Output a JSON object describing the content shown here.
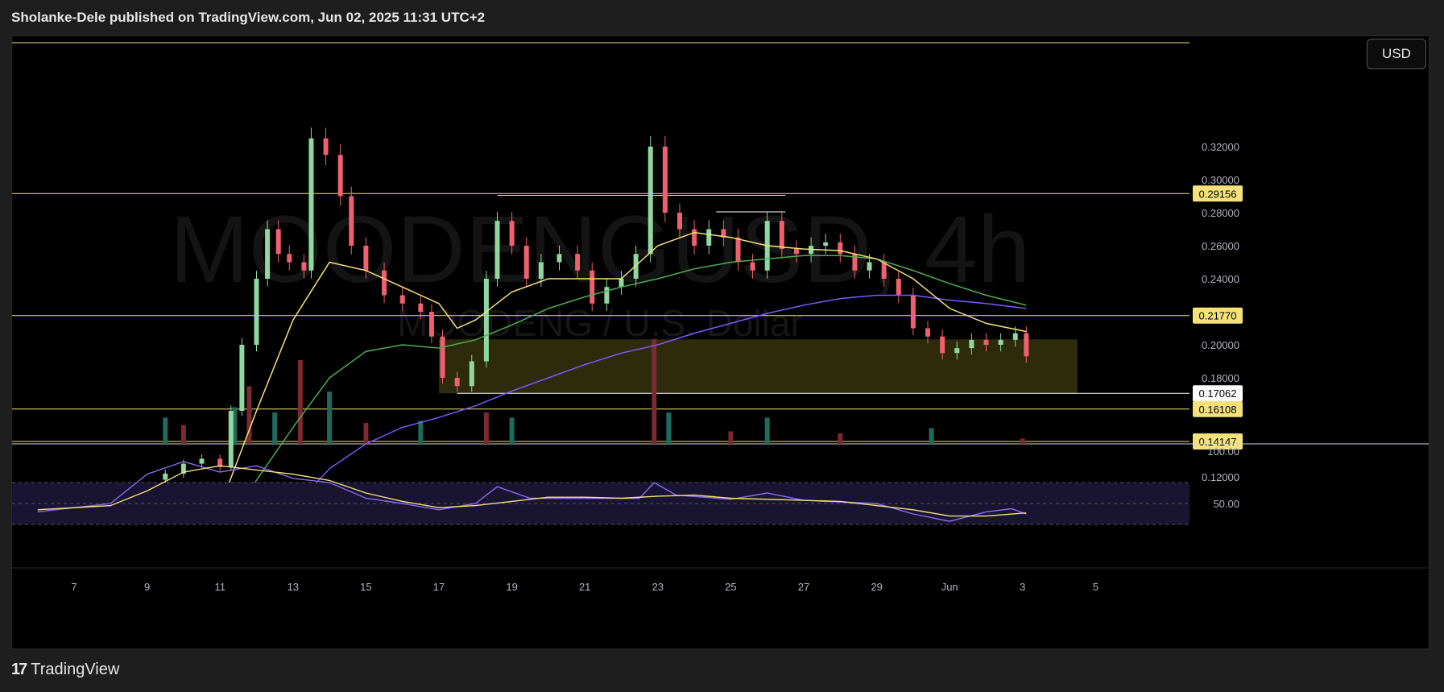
{
  "header": {
    "attribution": "Sholanke-Dele published on TradingView.com, Jun 02, 2025 11:31 UTC+2"
  },
  "currency_button": {
    "label": "USD"
  },
  "watermark": {
    "symbol": "MOODENGUSD, 4h",
    "name": "MOODENG / U.S. Dollar"
  },
  "footer": {
    "brand": "TradingView",
    "logo_icon": "tradingview-logo-icon"
  },
  "colors": {
    "up": "#8fd8a0",
    "down": "#f0606e",
    "ema_fast": "#f5e17a",
    "ema_mid": "#4caf50",
    "ema_slow": "#7e57ff",
    "level": "#f5e17a",
    "zone": "#3d3a10",
    "rsi": "#8a6cf0",
    "rsi_ma": "#f5e17a"
  },
  "chart_data": {
    "type": "candlestick",
    "timeframe": "4h",
    "x_ticks": [
      "7",
      "9",
      "11",
      "13",
      "15",
      "17",
      "19",
      "21",
      "23",
      "25",
      "27",
      "29",
      "Jun",
      "3",
      "5"
    ],
    "y_ticks": [
      "0.32000",
      "0.30000",
      "0.28000",
      "0.26000",
      "0.24000",
      "0.20000",
      "0.18000",
      "0.12000"
    ],
    "ylim": [
      0.1,
      0.345
    ],
    "levels": [
      {
        "price": 0.29156,
        "label": "0.29156"
      },
      {
        "price": 0.2177,
        "label": "0.21770"
      },
      {
        "price": 0.17062,
        "label": "0.17062"
      },
      {
        "price": 0.16108,
        "label": "0.16108"
      },
      {
        "price": 0.14147,
        "label": "0.14147"
      }
    ],
    "zone": {
      "from_day": 17.0,
      "to_day": 34.5,
      "low": 0.1706,
      "high": 0.2033
    },
    "closes": [
      {
        "day": 9.5,
        "close": 0.122
      },
      {
        "day": 10.0,
        "close": 0.128
      },
      {
        "day": 10.5,
        "close": 0.131
      },
      {
        "day": 11.0,
        "close": 0.126
      },
      {
        "day": 11.3,
        "close": 0.16
      },
      {
        "day": 11.6,
        "close": 0.2
      },
      {
        "day": 12.0,
        "close": 0.24
      },
      {
        "day": 12.3,
        "close": 0.27
      },
      {
        "day": 12.6,
        "close": 0.255
      },
      {
        "day": 12.9,
        "close": 0.25
      },
      {
        "day": 13.3,
        "close": 0.245
      },
      {
        "day": 13.5,
        "close": 0.325
      },
      {
        "day": 13.9,
        "close": 0.315
      },
      {
        "day": 14.3,
        "close": 0.29
      },
      {
        "day": 14.6,
        "close": 0.26
      },
      {
        "day": 15.0,
        "close": 0.245
      },
      {
        "day": 15.5,
        "close": 0.23
      },
      {
        "day": 16.0,
        "close": 0.225
      },
      {
        "day": 16.5,
        "close": 0.22
      },
      {
        "day": 16.8,
        "close": 0.205
      },
      {
        "day": 17.1,
        "close": 0.18
      },
      {
        "day": 17.5,
        "close": 0.175
      },
      {
        "day": 17.9,
        "close": 0.19
      },
      {
        "day": 18.3,
        "close": 0.24
      },
      {
        "day": 18.6,
        "close": 0.275
      },
      {
        "day": 19.0,
        "close": 0.26
      },
      {
        "day": 19.4,
        "close": 0.24
      },
      {
        "day": 19.8,
        "close": 0.25
      },
      {
        "day": 20.3,
        "close": 0.255
      },
      {
        "day": 20.8,
        "close": 0.245
      },
      {
        "day": 21.2,
        "close": 0.225
      },
      {
        "day": 21.6,
        "close": 0.235
      },
      {
        "day": 22.0,
        "close": 0.24
      },
      {
        "day": 22.4,
        "close": 0.255
      },
      {
        "day": 22.8,
        "close": 0.32
      },
      {
        "day": 23.2,
        "close": 0.28
      },
      {
        "day": 23.6,
        "close": 0.27
      },
      {
        "day": 24.0,
        "close": 0.26
      },
      {
        "day": 24.4,
        "close": 0.27
      },
      {
        "day": 24.8,
        "close": 0.265
      },
      {
        "day": 25.2,
        "close": 0.25
      },
      {
        "day": 25.6,
        "close": 0.245
      },
      {
        "day": 26.0,
        "close": 0.275
      },
      {
        "day": 26.4,
        "close": 0.258
      },
      {
        "day": 26.8,
        "close": 0.255
      },
      {
        "day": 27.2,
        "close": 0.26
      },
      {
        "day": 27.6,
        "close": 0.262
      },
      {
        "day": 28.0,
        "close": 0.255
      },
      {
        "day": 28.4,
        "close": 0.245
      },
      {
        "day": 28.8,
        "close": 0.25
      },
      {
        "day": 29.2,
        "close": 0.24
      },
      {
        "day": 29.6,
        "close": 0.23
      },
      {
        "day": 30.0,
        "close": 0.21
      },
      {
        "day": 30.4,
        "close": 0.205
      },
      {
        "day": 30.8,
        "close": 0.195
      },
      {
        "day": 31.2,
        "close": 0.198
      },
      {
        "day": 31.6,
        "close": 0.203
      },
      {
        "day": 32.0,
        "close": 0.2
      },
      {
        "day": 32.4,
        "close": 0.203
      },
      {
        "day": 32.8,
        "close": 0.207
      },
      {
        "day": 33.1,
        "close": 0.193
      }
    ],
    "ema_fast": [
      {
        "day": 11.0,
        "price": 0.102
      },
      {
        "day": 12.0,
        "price": 0.16
      },
      {
        "day": 13.0,
        "price": 0.215
      },
      {
        "day": 14.0,
        "price": 0.25
      },
      {
        "day": 15.0,
        "price": 0.245
      },
      {
        "day": 16.0,
        "price": 0.235
      },
      {
        "day": 17.0,
        "price": 0.225
      },
      {
        "day": 17.5,
        "price": 0.21
      },
      {
        "day": 18.0,
        "price": 0.215
      },
      {
        "day": 19.0,
        "price": 0.232
      },
      {
        "day": 20.0,
        "price": 0.24
      },
      {
        "day": 21.0,
        "price": 0.24
      },
      {
        "day": 22.0,
        "price": 0.24
      },
      {
        "day": 23.0,
        "price": 0.26
      },
      {
        "day": 24.0,
        "price": 0.268
      },
      {
        "day": 25.0,
        "price": 0.265
      },
      {
        "day": 26.0,
        "price": 0.26
      },
      {
        "day": 27.0,
        "price": 0.258
      },
      {
        "day": 28.0,
        "price": 0.257
      },
      {
        "day": 29.0,
        "price": 0.252
      },
      {
        "day": 30.0,
        "price": 0.24
      },
      {
        "day": 31.0,
        "price": 0.222
      },
      {
        "day": 32.0,
        "price": 0.213
      },
      {
        "day": 33.1,
        "price": 0.208
      }
    ],
    "ema_mid": [
      {
        "day": 11.5,
        "price": 0.102
      },
      {
        "day": 13.0,
        "price": 0.15
      },
      {
        "day": 14.0,
        "price": 0.18
      },
      {
        "day": 15.0,
        "price": 0.196
      },
      {
        "day": 16.0,
        "price": 0.2
      },
      {
        "day": 17.0,
        "price": 0.198
      },
      {
        "day": 18.0,
        "price": 0.203
      },
      {
        "day": 19.0,
        "price": 0.212
      },
      {
        "day": 20.0,
        "price": 0.222
      },
      {
        "day": 21.0,
        "price": 0.229
      },
      {
        "day": 22.0,
        "price": 0.235
      },
      {
        "day": 23.0,
        "price": 0.24
      },
      {
        "day": 24.0,
        "price": 0.246
      },
      {
        "day": 25.0,
        "price": 0.25
      },
      {
        "day": 26.0,
        "price": 0.252
      },
      {
        "day": 27.0,
        "price": 0.254
      },
      {
        "day": 28.0,
        "price": 0.254
      },
      {
        "day": 29.0,
        "price": 0.252
      },
      {
        "day": 30.0,
        "price": 0.245
      },
      {
        "day": 31.0,
        "price": 0.237
      },
      {
        "day": 32.0,
        "price": 0.23
      },
      {
        "day": 33.1,
        "price": 0.224
      }
    ],
    "ema_slow": [
      {
        "day": 13.0,
        "price": 0.101
      },
      {
        "day": 14.0,
        "price": 0.125
      },
      {
        "day": 15.0,
        "price": 0.14
      },
      {
        "day": 16.0,
        "price": 0.15
      },
      {
        "day": 17.0,
        "price": 0.156
      },
      {
        "day": 18.0,
        "price": 0.163
      },
      {
        "day": 19.0,
        "price": 0.172
      },
      {
        "day": 20.0,
        "price": 0.18
      },
      {
        "day": 21.0,
        "price": 0.188
      },
      {
        "day": 22.0,
        "price": 0.195
      },
      {
        "day": 23.0,
        "price": 0.2
      },
      {
        "day": 24.0,
        "price": 0.207
      },
      {
        "day": 25.0,
        "price": 0.213
      },
      {
        "day": 26.0,
        "price": 0.219
      },
      {
        "day": 27.0,
        "price": 0.224
      },
      {
        "day": 28.0,
        "price": 0.228
      },
      {
        "day": 29.0,
        "price": 0.23
      },
      {
        "day": 30.0,
        "price": 0.23
      },
      {
        "day": 31.0,
        "price": 0.227
      },
      {
        "day": 32.0,
        "price": 0.225
      },
      {
        "day": 33.1,
        "price": 0.222
      }
    ],
    "volume": [
      {
        "day": 9.5,
        "v": 0.25
      },
      {
        "day": 10.0,
        "v": 0.18
      },
      {
        "day": 11.4,
        "v": 0.35
      },
      {
        "day": 11.8,
        "v": 0.55
      },
      {
        "day": 12.5,
        "v": 0.3
      },
      {
        "day": 13.2,
        "v": 0.8
      },
      {
        "day": 14.0,
        "v": 0.5
      },
      {
        "day": 15.0,
        "v": 0.2
      },
      {
        "day": 16.5,
        "v": 0.22
      },
      {
        "day": 18.3,
        "v": 0.3
      },
      {
        "day": 19.0,
        "v": 0.25
      },
      {
        "day": 22.9,
        "v": 1.0
      },
      {
        "day": 23.3,
        "v": 0.3
      },
      {
        "day": 25.0,
        "v": 0.12
      },
      {
        "day": 26.0,
        "v": 0.25
      },
      {
        "day": 28.0,
        "v": 0.1
      },
      {
        "day": 30.5,
        "v": 0.15
      },
      {
        "day": 33.0,
        "v": 0.05
      }
    ],
    "rsi": {
      "ylim": [
        20,
        100
      ],
      "ticks": [
        "100.00",
        "50.00"
      ],
      "band": [
        30,
        70
      ],
      "values": [
        {
          "day": 6.0,
          "v": 42
        },
        {
          "day": 7.0,
          "v": 46
        },
        {
          "day": 8.0,
          "v": 50
        },
        {
          "day": 9.0,
          "v": 78
        },
        {
          "day": 10.0,
          "v": 90
        },
        {
          "day": 11.0,
          "v": 80
        },
        {
          "day": 12.0,
          "v": 86
        },
        {
          "day": 13.0,
          "v": 74
        },
        {
          "day": 14.0,
          "v": 70
        },
        {
          "day": 15.0,
          "v": 55
        },
        {
          "day": 16.0,
          "v": 50
        },
        {
          "day": 17.0,
          "v": 44
        },
        {
          "day": 18.0,
          "v": 50
        },
        {
          "day": 18.6,
          "v": 66
        },
        {
          "day": 19.5,
          "v": 55
        },
        {
          "day": 21.0,
          "v": 55
        },
        {
          "day": 22.5,
          "v": 55
        },
        {
          "day": 22.9,
          "v": 70
        },
        {
          "day": 23.5,
          "v": 58
        },
        {
          "day": 25.0,
          "v": 54
        },
        {
          "day": 26.0,
          "v": 60
        },
        {
          "day": 27.0,
          "v": 53
        },
        {
          "day": 29.0,
          "v": 50
        },
        {
          "day": 30.0,
          "v": 40
        },
        {
          "day": 31.0,
          "v": 33
        },
        {
          "day": 32.0,
          "v": 42
        },
        {
          "day": 32.7,
          "v": 45
        },
        {
          "day": 33.1,
          "v": 40
        }
      ],
      "ma": [
        {
          "day": 6.0,
          "v": 44
        },
        {
          "day": 8.0,
          "v": 48
        },
        {
          "day": 9.0,
          "v": 62
        },
        {
          "day": 10.0,
          "v": 80
        },
        {
          "day": 11.0,
          "v": 86
        },
        {
          "day": 12.0,
          "v": 82
        },
        {
          "day": 13.0,
          "v": 78
        },
        {
          "day": 14.0,
          "v": 72
        },
        {
          "day": 15.0,
          "v": 60
        },
        {
          "day": 16.0,
          "v": 52
        },
        {
          "day": 17.0,
          "v": 46
        },
        {
          "day": 18.0,
          "v": 48
        },
        {
          "day": 19.0,
          "v": 52
        },
        {
          "day": 20.0,
          "v": 56
        },
        {
          "day": 21.0,
          "v": 56
        },
        {
          "day": 22.0,
          "v": 55
        },
        {
          "day": 23.0,
          "v": 57
        },
        {
          "day": 24.0,
          "v": 58
        },
        {
          "day": 25.0,
          "v": 55
        },
        {
          "day": 27.0,
          "v": 53
        },
        {
          "day": 28.0,
          "v": 52
        },
        {
          "day": 29.0,
          "v": 48
        },
        {
          "day": 30.0,
          "v": 44
        },
        {
          "day": 31.0,
          "v": 38
        },
        {
          "day": 32.0,
          "v": 38
        },
        {
          "day": 33.1,
          "v": 41
        }
      ]
    }
  }
}
